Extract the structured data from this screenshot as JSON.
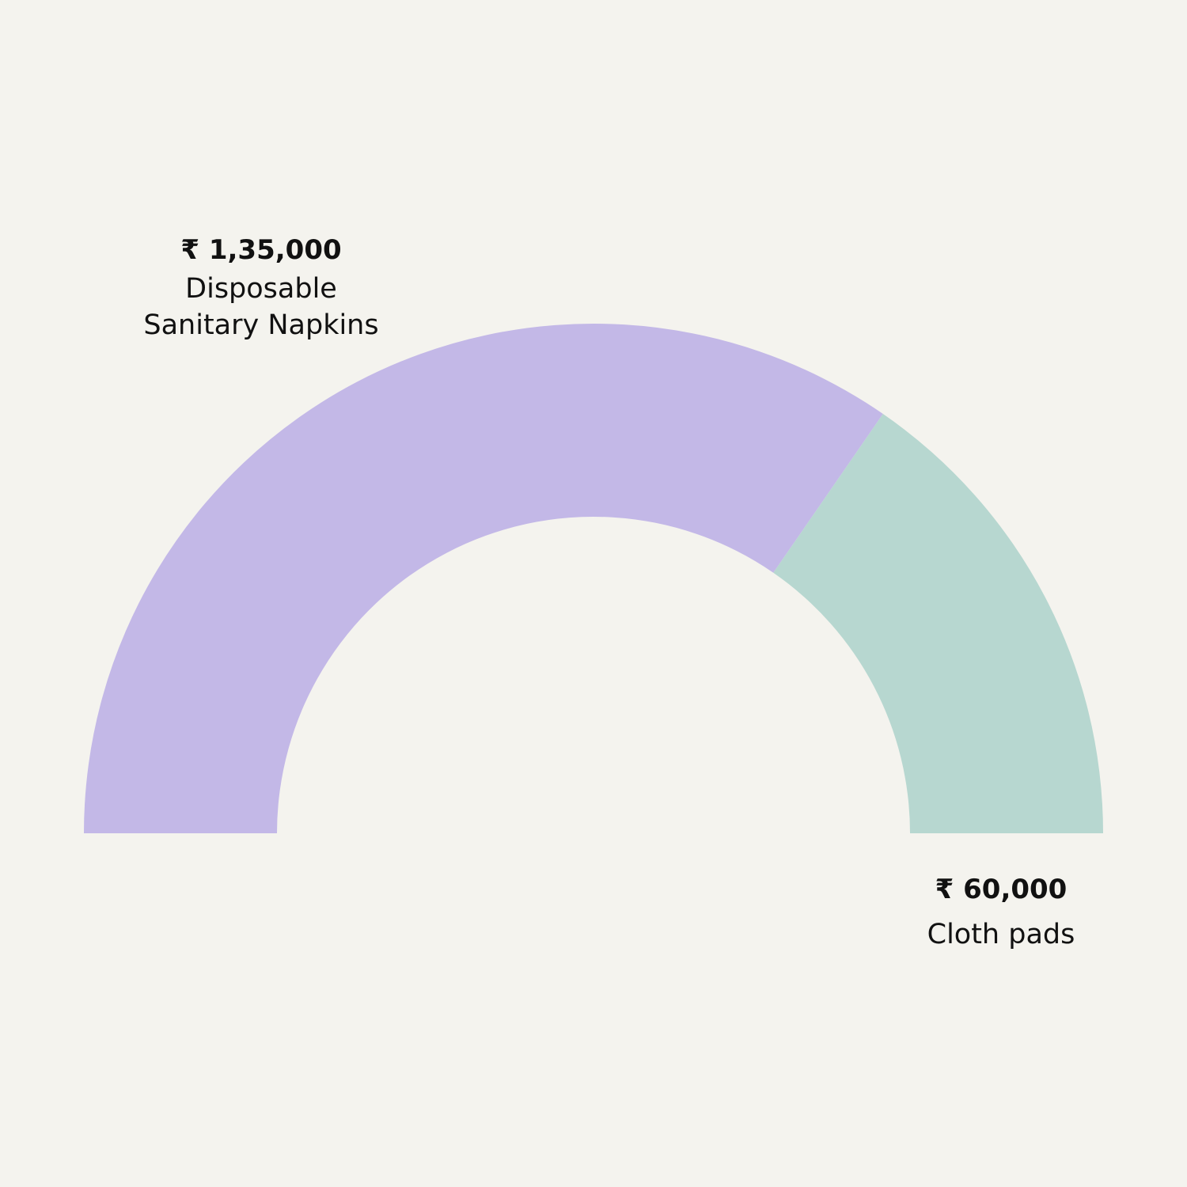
{
  "chart_data": {
    "type": "pie",
    "variant": "semi-donut",
    "title": "",
    "slices": [
      {
        "label": "Disposable\nSanitary Napkins",
        "value": 135000,
        "value_label": "₹ 1,35,000",
        "color": "#c3b8e7"
      },
      {
        "label": "Cloth pads",
        "value": 60000,
        "value_label": "₹ 60,000",
        "color": "#b7d7d0"
      }
    ],
    "legend": "none"
  },
  "background_color": "#f4f3ee"
}
